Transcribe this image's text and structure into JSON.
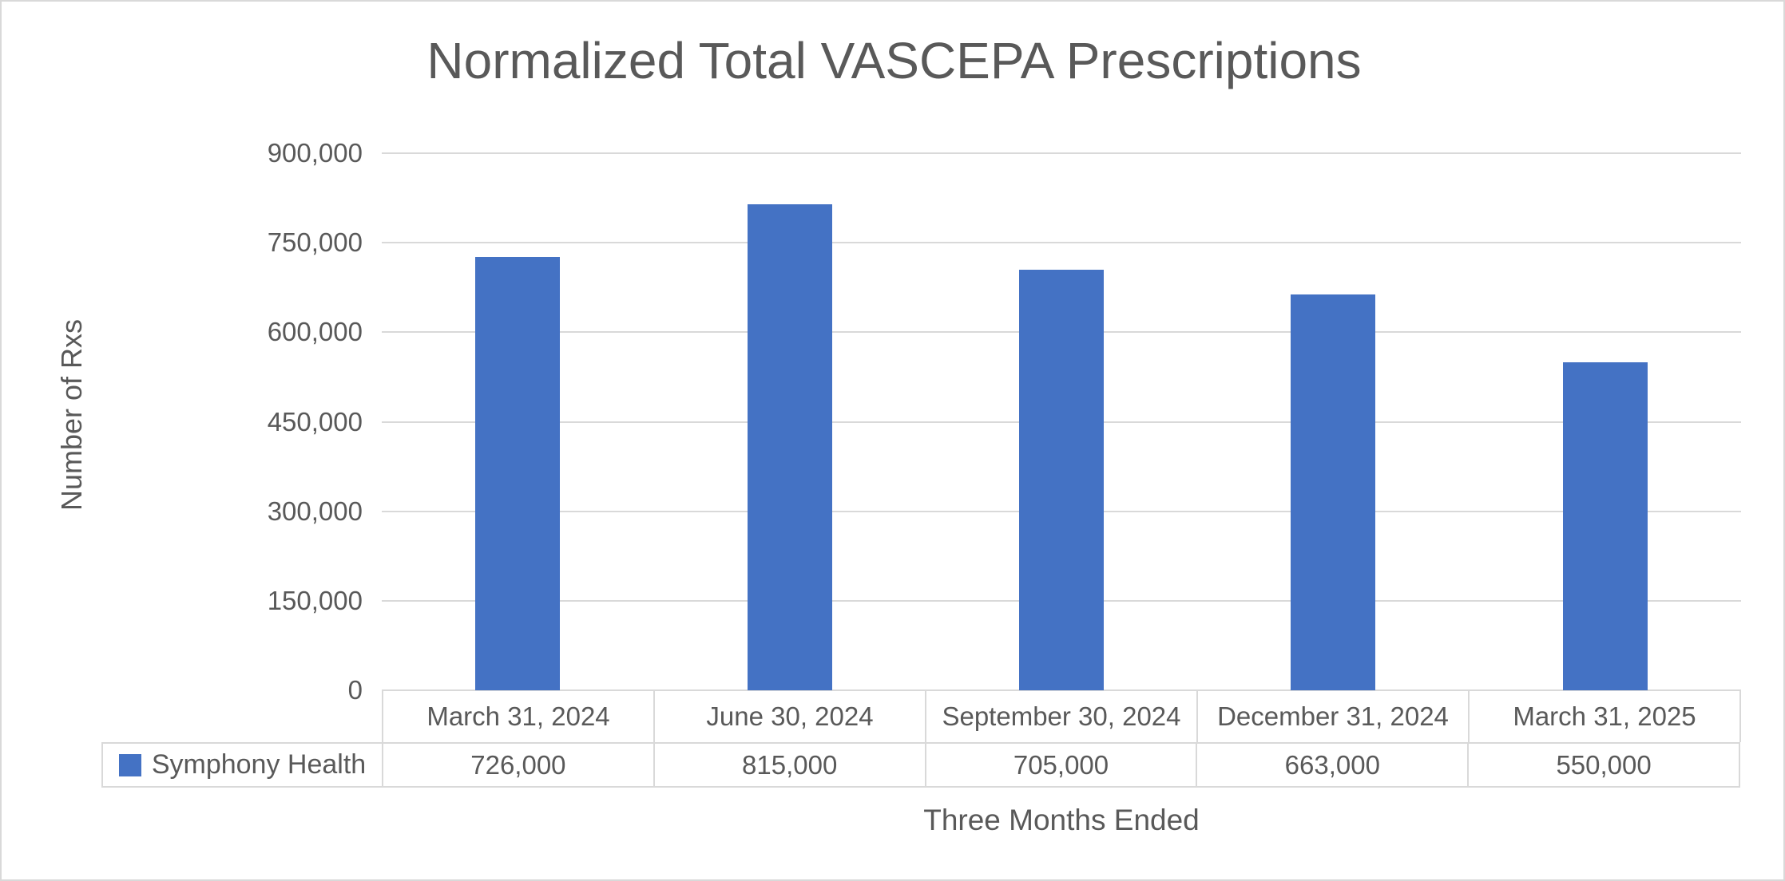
{
  "chart_data": {
    "type": "bar",
    "title": "Normalized Total VASCEPA Prescriptions",
    "xlabel": "Three Months Ended",
    "ylabel": "Number of Rxs",
    "categories": [
      "March 31, 2024",
      "June 30, 2024",
      "September 30, 2024",
      "December 31, 2024",
      "March 31, 2025"
    ],
    "series": [
      {
        "name": "Symphony Health",
        "values": [
          726000,
          815000,
          705000,
          663000,
          550000
        ],
        "value_labels": [
          "726,000",
          "815,000",
          "705,000",
          "663,000",
          "550,000"
        ],
        "color": "#4472C4"
      }
    ],
    "ylim": [
      0,
      900000
    ],
    "ytick_interval": 150000,
    "ytick_labels": [
      "0",
      "150,000",
      "300,000",
      "450,000",
      "600,000",
      "750,000",
      "900,000"
    ],
    "grid": "horizontal-only",
    "legend_position": "bottom-left-table",
    "colors": {
      "bar": "#4472C4",
      "text": "#595959",
      "gridline": "#D9D9D9",
      "table_border": "#D9D9D9",
      "frame_border": "#D9D9D9",
      "background": "#FFFFFF"
    }
  }
}
